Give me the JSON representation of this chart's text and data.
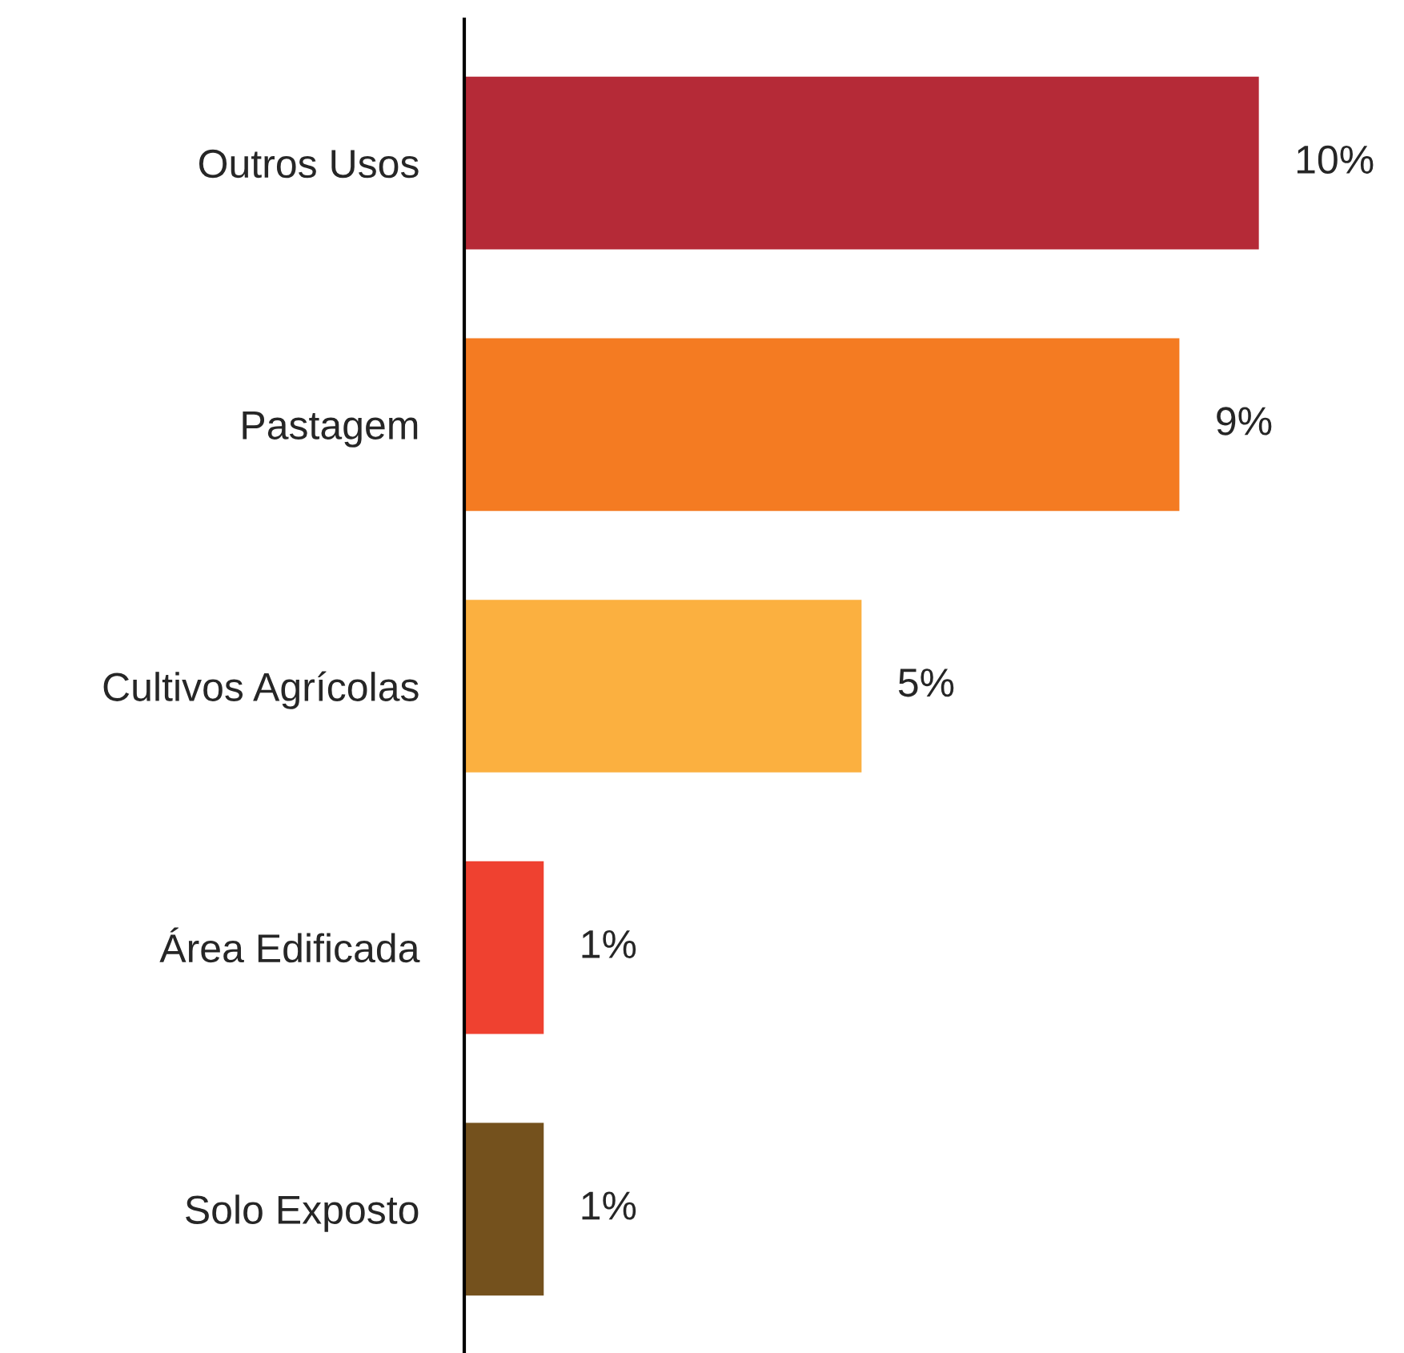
{
  "chart_data": {
    "type": "bar",
    "orientation": "horizontal",
    "categories": [
      "Outros Usos",
      "Pastagem",
      "Cultivos Agrícolas",
      "Área Edificada",
      "Solo Exposto"
    ],
    "values": [
      10,
      9,
      5,
      1,
      1
    ],
    "value_labels": [
      "10%",
      "9%",
      "5%",
      "1%",
      "1%"
    ],
    "colors": [
      "#b52a37",
      "#f47b22",
      "#fbb040",
      "#ef4130",
      "#74511d"
    ],
    "grid": false,
    "legend": false
  }
}
